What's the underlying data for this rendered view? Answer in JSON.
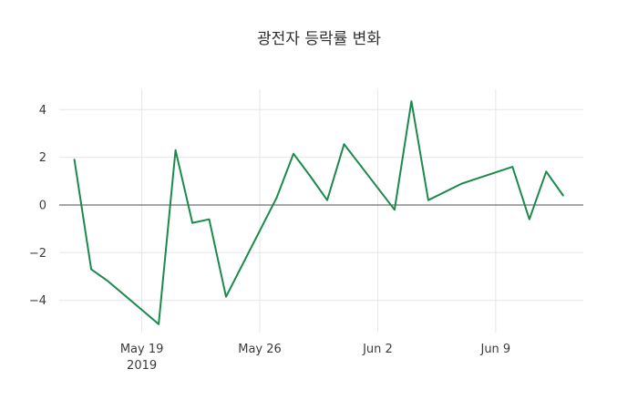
{
  "chart_data": {
    "type": "line",
    "title": "광전자 등락률 변화",
    "grid": true,
    "zero_line": true,
    "legend": "none",
    "x_range_days_from_may19": [
      -4.9,
      26.2
    ],
    "y_range": [
      -5.35,
      4.85
    ],
    "y_ticks": [
      -4,
      -2,
      0,
      2,
      4
    ],
    "x_ticks": [
      {
        "day": 0,
        "label": "May 19",
        "sublabel": "2019"
      },
      {
        "day": 7,
        "label": "May 26"
      },
      {
        "day": 14,
        "label": "Jun 2"
      },
      {
        "day": 21,
        "label": "Jun 9"
      }
    ],
    "series": [
      {
        "name": "등락률",
        "color": "#1a8a4c",
        "points": [
          {
            "date": "2019-05-15",
            "day": -4,
            "value": 1.9
          },
          {
            "date": "2019-05-16",
            "day": -3,
            "value": -2.7
          },
          {
            "date": "2019-05-17",
            "day": -2,
            "value": -3.2
          },
          {
            "date": "2019-05-20",
            "day": 1,
            "value": -5.0
          },
          {
            "date": "2019-05-21",
            "day": 2,
            "value": 2.3
          },
          {
            "date": "2019-05-22",
            "day": 3,
            "value": -0.75
          },
          {
            "date": "2019-05-23",
            "day": 4,
            "value": -0.6
          },
          {
            "date": "2019-05-24",
            "day": 5,
            "value": -3.85
          },
          {
            "date": "2019-05-27",
            "day": 8,
            "value": 0.3
          },
          {
            "date": "2019-05-28",
            "day": 9,
            "value": 2.15
          },
          {
            "date": "2019-05-29",
            "day": 10,
            "value": 1.2
          },
          {
            "date": "2019-05-30",
            "day": 11,
            "value": 0.2
          },
          {
            "date": "2019-05-31",
            "day": 12,
            "value": 2.55
          },
          {
            "date": "2019-06-03",
            "day": 15,
            "value": -0.2
          },
          {
            "date": "2019-06-04",
            "day": 16,
            "value": 4.35
          },
          {
            "date": "2019-06-05",
            "day": 17,
            "value": 0.2
          },
          {
            "date": "2019-06-07",
            "day": 19,
            "value": 0.9
          },
          {
            "date": "2019-06-10",
            "day": 22,
            "value": 1.6
          },
          {
            "date": "2019-06-11",
            "day": 23,
            "value": -0.6
          },
          {
            "date": "2019-06-12",
            "day": 24,
            "value": 1.4
          },
          {
            "date": "2019-06-13",
            "day": 25,
            "value": 0.4
          }
        ]
      }
    ]
  }
}
